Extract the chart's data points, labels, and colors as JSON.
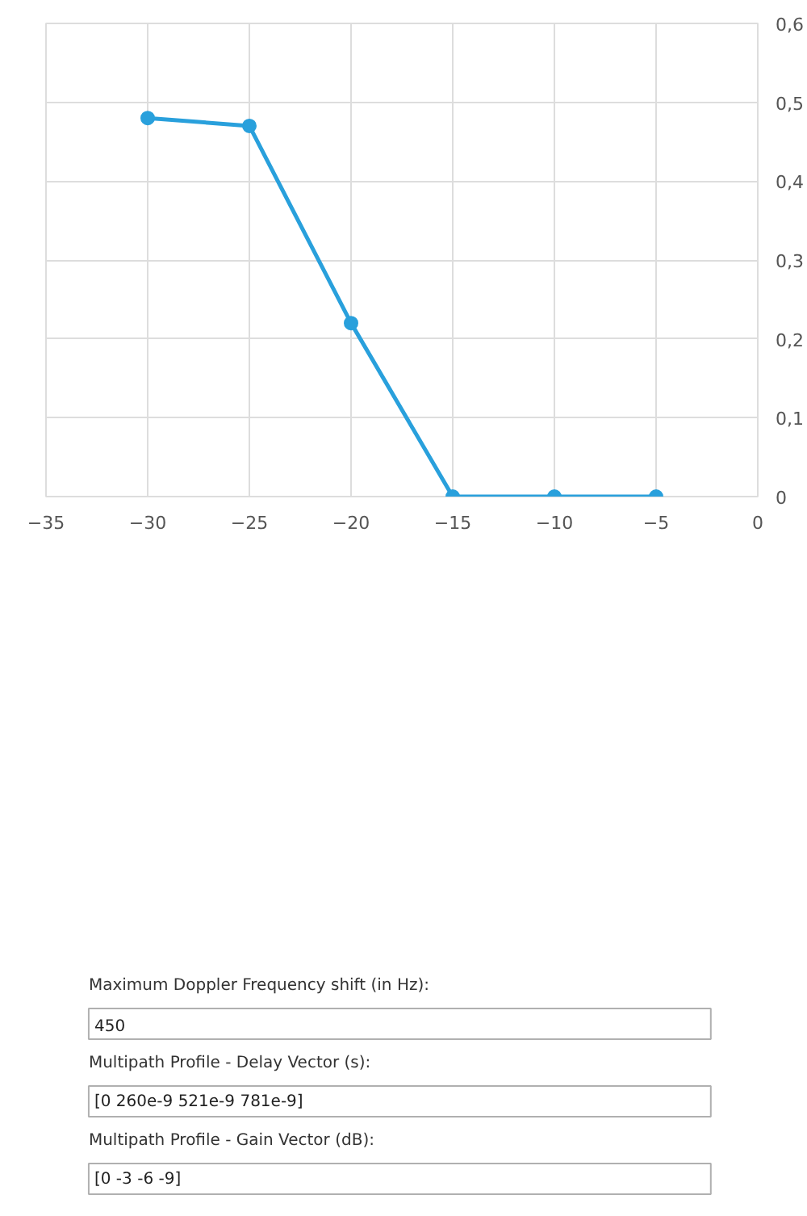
{
  "chart_data": [
    {
      "type": "line",
      "x": [
        -30,
        -25,
        -20,
        -15,
        -10,
        -5
      ],
      "values": [
        0.48,
        0.47,
        0.22,
        0,
        0,
        0
      ],
      "color": "#29a0dc",
      "marker": "circle",
      "line_style": "solid",
      "grid": true,
      "xlim": [
        -35,
        0
      ],
      "xticks": [
        -35,
        -30,
        -25,
        -20,
        -15,
        -10,
        -5,
        0
      ],
      "ylim": [
        0,
        0.6
      ],
      "yticks": [
        {
          "value": 0,
          "label": "0"
        },
        {
          "value": 0.1,
          "label": "0,1"
        },
        {
          "value": 0.2,
          "label": "0,2"
        },
        {
          "value": 0.3,
          "label": "0,3"
        },
        {
          "value": 0.4,
          "label": "0,4"
        },
        {
          "value": 0.5,
          "label": "0,5"
        },
        {
          "value": 0.6,
          "label": "0,6"
        }
      ]
    },
    {
      "type": "other",
      "annotations": [
        "Maximum Doppler Frequency shift (in Hz):",
        "450",
        "Multipath Profile - Delay Vector (s):",
        "[0 260e-9 521e-9 781e-9]",
        "Multipath Profile - Gain Vector (dB):",
        "[0 -3 -6 -9]"
      ]
    }
  ]
}
